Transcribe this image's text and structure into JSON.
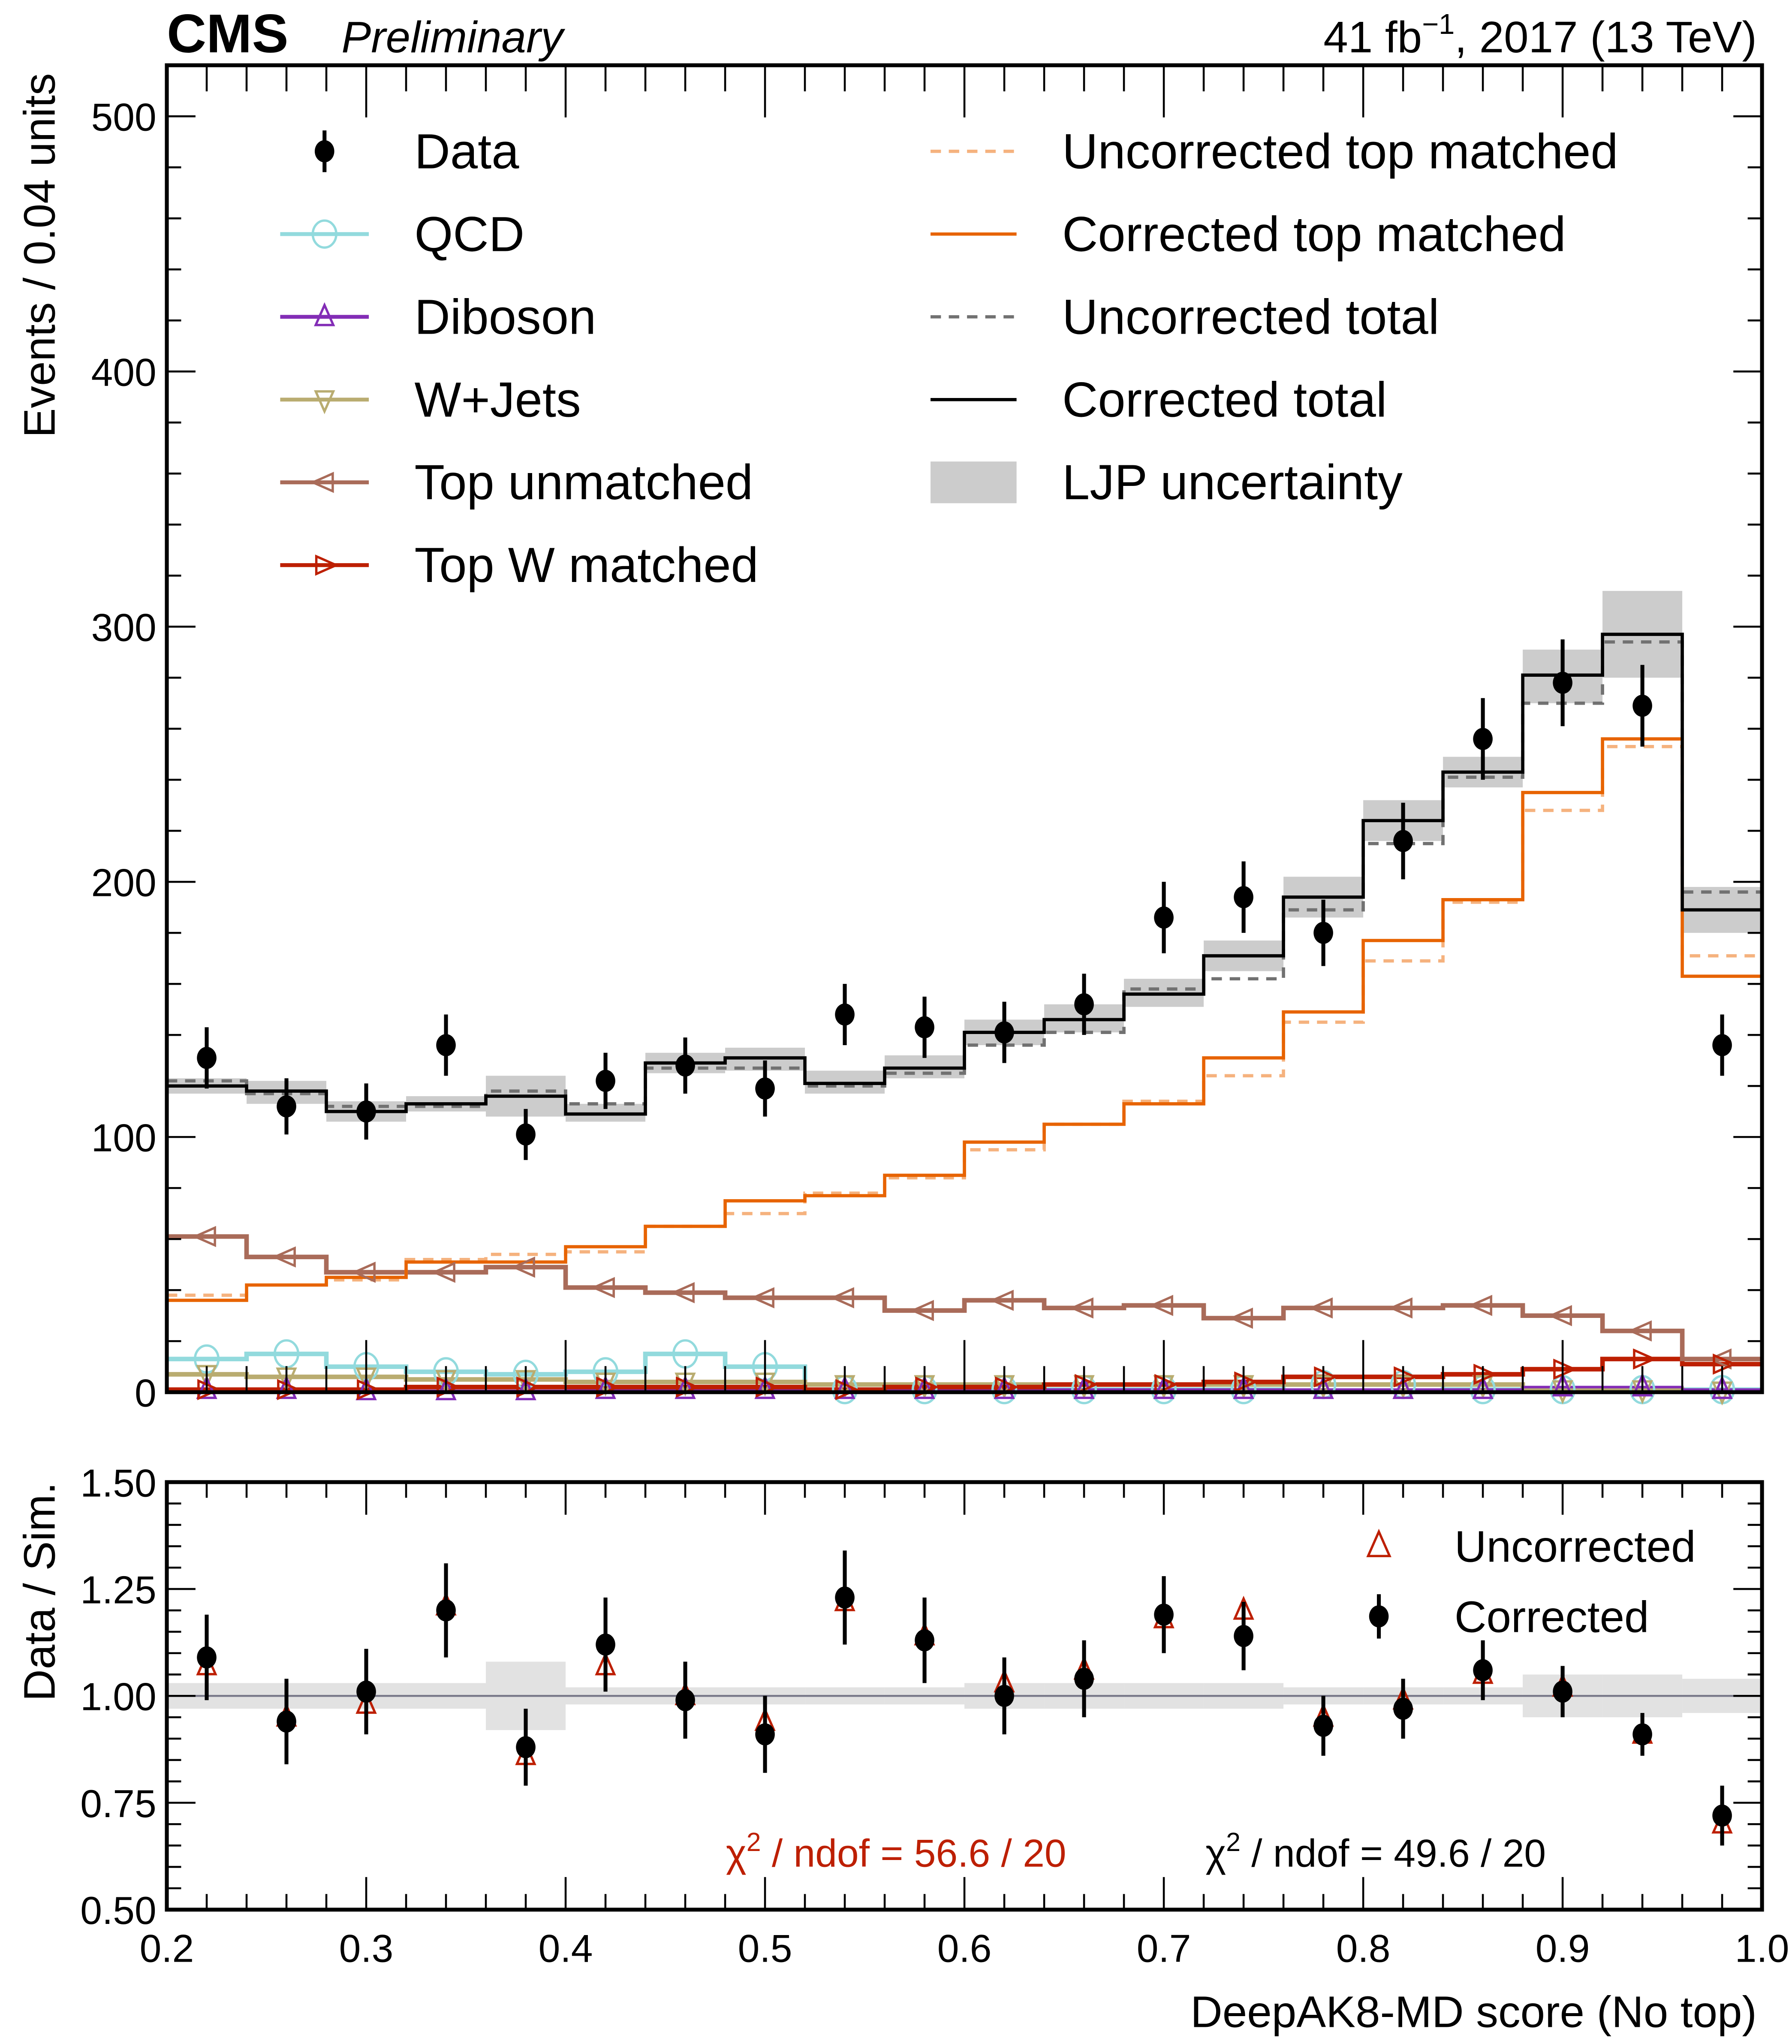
{
  "header": {
    "experiment": "CMS",
    "status": "Preliminary",
    "lumi_prefix": "41 fb",
    "lumi_sup": "−1",
    "lumi_suffix": ", 2017 (13 TeV)"
  },
  "chart_data": [
    {
      "type": "line",
      "panel": "main",
      "histogram": true,
      "ylabel": "Events / 0.04 units",
      "xlabel": "",
      "xlim": [
        0.2,
        1.0
      ],
      "ylim": [
        0,
        520
      ],
      "yticks": [
        0,
        100,
        200,
        300,
        400,
        500
      ],
      "ytick_labels": [
        "0",
        "100",
        "200",
        "300",
        "400",
        "500"
      ],
      "bin_edges": [
        0.2,
        0.24,
        0.28,
        0.32,
        0.36,
        0.4,
        0.44,
        0.48,
        0.52,
        0.56,
        0.6,
        0.64,
        0.68,
        0.72,
        0.76,
        0.8,
        0.84,
        0.88,
        0.92,
        0.96,
        1.0
      ],
      "bin_centers": [
        0.22,
        0.26,
        0.3,
        0.34,
        0.38,
        0.42,
        0.46,
        0.5,
        0.54,
        0.58,
        0.62,
        0.66,
        0.7,
        0.74,
        0.78,
        0.82,
        0.86,
        0.9,
        0.94,
        0.98
      ],
      "legend": [
        {
          "label": "Data",
          "color": "#000000",
          "style": "point"
        },
        {
          "label": "QCD",
          "color": "#92dadd",
          "style": "line",
          "marker": "circle"
        },
        {
          "label": "Diboson",
          "color": "#832db6",
          "style": "line",
          "marker": "triangle-up"
        },
        {
          "label": "W+Jets",
          "color": "#b9ac70",
          "style": "line",
          "marker": "triangle-down"
        },
        {
          "label": "Top unmatched",
          "color": "#a96b59",
          "style": "line",
          "marker": "triangle-left"
        },
        {
          "label": "Top W matched",
          "color": "#bd1f01",
          "style": "line",
          "marker": "triangle-right"
        },
        {
          "label": "Uncorrected top matched",
          "color": "#f5b27e",
          "style": "dashed"
        },
        {
          "label": "Corrected top matched",
          "color": "#e76300",
          "style": "line"
        },
        {
          "label": "Uncorrected total",
          "color": "#717171",
          "style": "dashed"
        },
        {
          "label": "Corrected total",
          "color": "#000000",
          "style": "line"
        },
        {
          "label": "LJP uncertainty",
          "color": "#cccccc",
          "style": "band"
        }
      ],
      "series": [
        {
          "name": "Data",
          "values": [
            131,
            112,
            110,
            136,
            101,
            122,
            128,
            119,
            148,
            143,
            141,
            152,
            186,
            194,
            180,
            216,
            256,
            278,
            269,
            136
          ],
          "errors": [
            12,
            11,
            11,
            12,
            10,
            11,
            11,
            11,
            12,
            12,
            12,
            12,
            14,
            14,
            13,
            15,
            16,
            17,
            16,
            12
          ]
        },
        {
          "name": "QCD",
          "values": [
            13,
            15,
            10,
            8,
            7,
            8,
            15,
            10,
            1,
            1,
            1,
            1,
            1,
            1,
            3,
            3,
            1,
            1,
            1,
            1
          ]
        },
        {
          "name": "Diboson",
          "values": [
            1,
            1,
            0.5,
            0.5,
            0.5,
            1,
            1,
            1,
            1,
            1,
            1,
            1,
            1,
            1,
            1,
            1,
            1,
            2,
            2,
            1
          ]
        },
        {
          "name": "W+Jets",
          "values": [
            7,
            6,
            6,
            5,
            5,
            4,
            4,
            4,
            3,
            3,
            3,
            3,
            3,
            3,
            3,
            3,
            3,
            1,
            1,
            0.5
          ]
        },
        {
          "name": "Top unmatched",
          "values": [
            61,
            53,
            47,
            47,
            49,
            41,
            39,
            37,
            37,
            32,
            36,
            33,
            34,
            29,
            33,
            33,
            34,
            30,
            24,
            13
          ]
        },
        {
          "name": "Top W matched",
          "values": [
            1,
            1,
            1,
            2,
            2,
            2,
            2,
            2,
            1,
            2,
            2,
            3,
            3,
            4,
            6,
            6,
            7,
            9,
            13,
            11
          ]
        },
        {
          "name": "Uncorrected top matched",
          "values": [
            38,
            42,
            44,
            52,
            54,
            55,
            65,
            70,
            78,
            84,
            95,
            105,
            114,
            124,
            145,
            169,
            192,
            228,
            253,
            171
          ]
        },
        {
          "name": "Corrected top matched",
          "values": [
            36,
            42,
            45,
            51,
            51,
            57,
            65,
            75,
            77,
            85,
            98,
            105,
            113,
            131,
            149,
            177,
            193,
            235,
            256,
            163
          ]
        },
        {
          "name": "Uncorrected total",
          "values": [
            122,
            117,
            112,
            112,
            118,
            113,
            127,
            127,
            120,
            125,
            136,
            141,
            158,
            162,
            189,
            215,
            241,
            270,
            294,
            196
          ]
        },
        {
          "name": "Corrected total",
          "values": [
            120,
            118,
            110,
            113,
            116,
            109,
            129,
            131,
            121,
            127,
            141,
            146,
            156,
            171,
            194,
            224,
            243,
            281,
            297,
            189
          ]
        },
        {
          "name": "LJP uncertainty",
          "values_low": [
            117,
            113,
            106,
            110,
            108,
            106,
            125,
            126,
            117,
            123,
            136,
            141,
            151,
            165,
            186,
            216,
            237,
            270,
            280,
            180
          ],
          "values_high": [
            123,
            122,
            114,
            116,
            124,
            113,
            133,
            135,
            126,
            132,
            146,
            152,
            162,
            177,
            202,
            232,
            249,
            291,
            314,
            198
          ]
        }
      ]
    },
    {
      "type": "scatter",
      "panel": "ratio",
      "ylabel": "Data / Sim.",
      "xlabel": "DeepAK8-MD score (No top)",
      "xlim": [
        0.2,
        1.0
      ],
      "ylim": [
        0.5,
        1.5
      ],
      "xticks": [
        0.2,
        0.3,
        0.4,
        0.5,
        0.6,
        0.7,
        0.8,
        0.9,
        1.0
      ],
      "xtick_labels": [
        "0.2",
        "0.3",
        "0.4",
        "0.5",
        "0.6",
        "0.7",
        "0.8",
        "0.9",
        "1.0"
      ],
      "yticks": [
        0.5,
        0.75,
        1.0,
        1.25,
        1.5
      ],
      "ytick_labels": [
        "0.50",
        "0.75",
        "1.00",
        "1.25",
        "1.50"
      ],
      "x": [
        0.22,
        0.26,
        0.3,
        0.34,
        0.38,
        0.42,
        0.46,
        0.5,
        0.54,
        0.58,
        0.62,
        0.66,
        0.7,
        0.74,
        0.78,
        0.82,
        0.86,
        0.9,
        0.94,
        0.98
      ],
      "legend": [
        {
          "label": "Uncorrected",
          "color": "#bd1f01",
          "marker": "triangle-up-open"
        },
        {
          "label": "Corrected",
          "color": "#000000",
          "marker": "circle-filled"
        }
      ],
      "series": [
        {
          "name": "Uncorrected",
          "values": [
            1.07,
            0.95,
            0.98,
            1.21,
            0.86,
            1.07,
            1.0,
            0.94,
            1.22,
            1.14,
            1.03,
            1.06,
            1.18,
            1.2,
            0.95,
            0.99,
            1.05,
            1.02,
            0.91,
            0.7
          ]
        },
        {
          "name": "Corrected",
          "values": [
            1.09,
            0.94,
            1.01,
            1.2,
            0.88,
            1.12,
            0.99,
            0.91,
            1.23,
            1.13,
            1.0,
            1.04,
            1.19,
            1.14,
            0.93,
            0.97,
            1.06,
            1.01,
            0.91,
            0.72
          ],
          "errors": [
            0.1,
            0.1,
            0.1,
            0.11,
            0.09,
            0.11,
            0.09,
            0.09,
            0.11,
            0.1,
            0.09,
            0.09,
            0.09,
            0.08,
            0.07,
            0.07,
            0.07,
            0.06,
            0.05,
            0.07
          ]
        },
        {
          "name": "LJP uncertainty",
          "values_low": [
            0.97,
            0.97,
            0.97,
            0.97,
            0.92,
            0.98,
            0.98,
            0.98,
            0.98,
            0.98,
            0.97,
            0.97,
            0.97,
            0.97,
            0.98,
            0.98,
            0.98,
            0.95,
            0.95,
            0.96
          ],
          "values_high": [
            1.03,
            1.03,
            1.03,
            1.03,
            1.08,
            1.02,
            1.02,
            1.02,
            1.02,
            1.02,
            1.03,
            1.03,
            1.03,
            1.03,
            1.02,
            1.02,
            1.02,
            1.05,
            1.05,
            1.04
          ]
        }
      ],
      "annotations": [
        {
          "text_prefix": "χ",
          "sup": "2",
          "text": " / ndof = 56.6 / 20",
          "color": "#bd1f01"
        },
        {
          "text_prefix": "χ",
          "sup": "2",
          "text": " / ndof = 49.6 / 20",
          "color": "#000000"
        }
      ]
    }
  ]
}
